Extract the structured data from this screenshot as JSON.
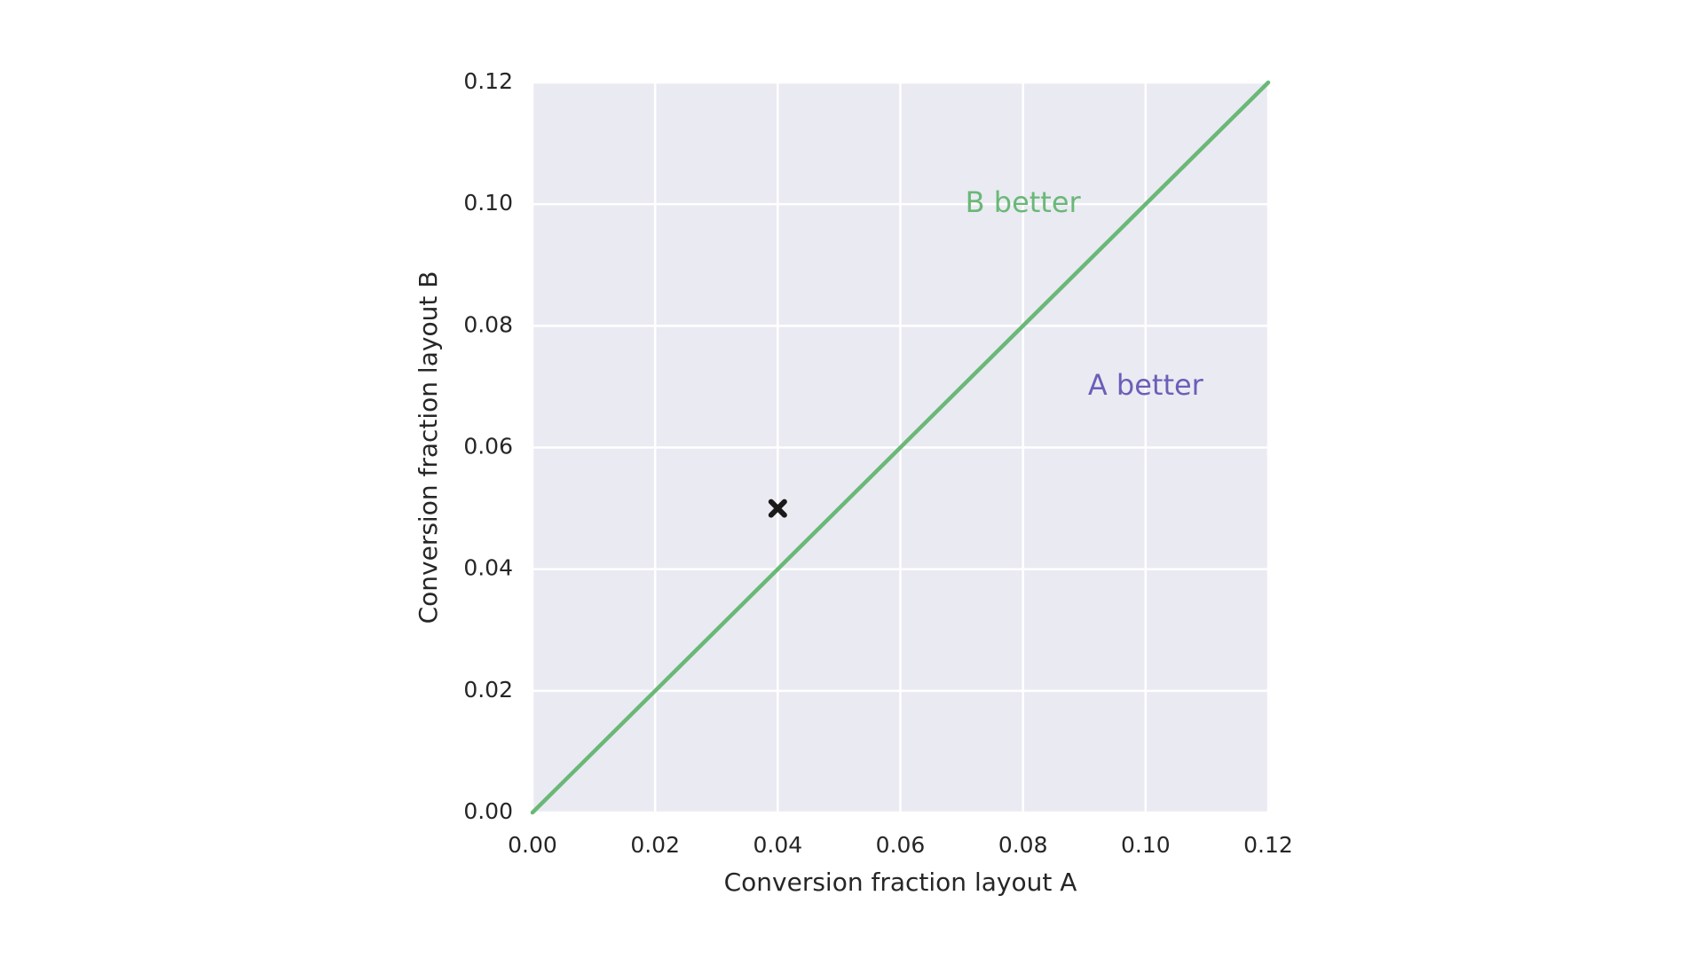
{
  "chart_data": {
    "type": "scatter",
    "title": "",
    "xlabel": "Conversion fraction layout A",
    "ylabel": "Conversion fraction layout B",
    "xlim": [
      0.0,
      0.12
    ],
    "ylim": [
      0.0,
      0.12
    ],
    "x_ticks": [
      "0.00",
      "0.02",
      "0.04",
      "0.06",
      "0.08",
      "0.10",
      "0.12"
    ],
    "y_ticks": [
      "0.00",
      "0.02",
      "0.04",
      "0.06",
      "0.08",
      "0.10",
      "0.12"
    ],
    "x_tick_values": [
      0.0,
      0.02,
      0.04,
      0.06,
      0.08,
      0.1,
      0.12
    ],
    "y_tick_values": [
      0.0,
      0.02,
      0.04,
      0.06,
      0.08,
      0.1,
      0.12
    ],
    "grid": true,
    "background_color": "#eaeaf2",
    "grid_color": "#ffffff",
    "reference_line": {
      "x": [
        0.0,
        0.12
      ],
      "y": [
        0.0,
        0.12
      ],
      "color": "#6ab877"
    },
    "points": [
      {
        "x": 0.04,
        "y": 0.05,
        "marker": "x",
        "color": "#1a1a1a"
      }
    ],
    "annotations": [
      {
        "text": "B better",
        "x": 0.08,
        "y": 0.1,
        "color": "#6ab877"
      },
      {
        "text": "A better",
        "x": 0.1,
        "y": 0.07,
        "color": "#6a5fb8"
      }
    ]
  }
}
